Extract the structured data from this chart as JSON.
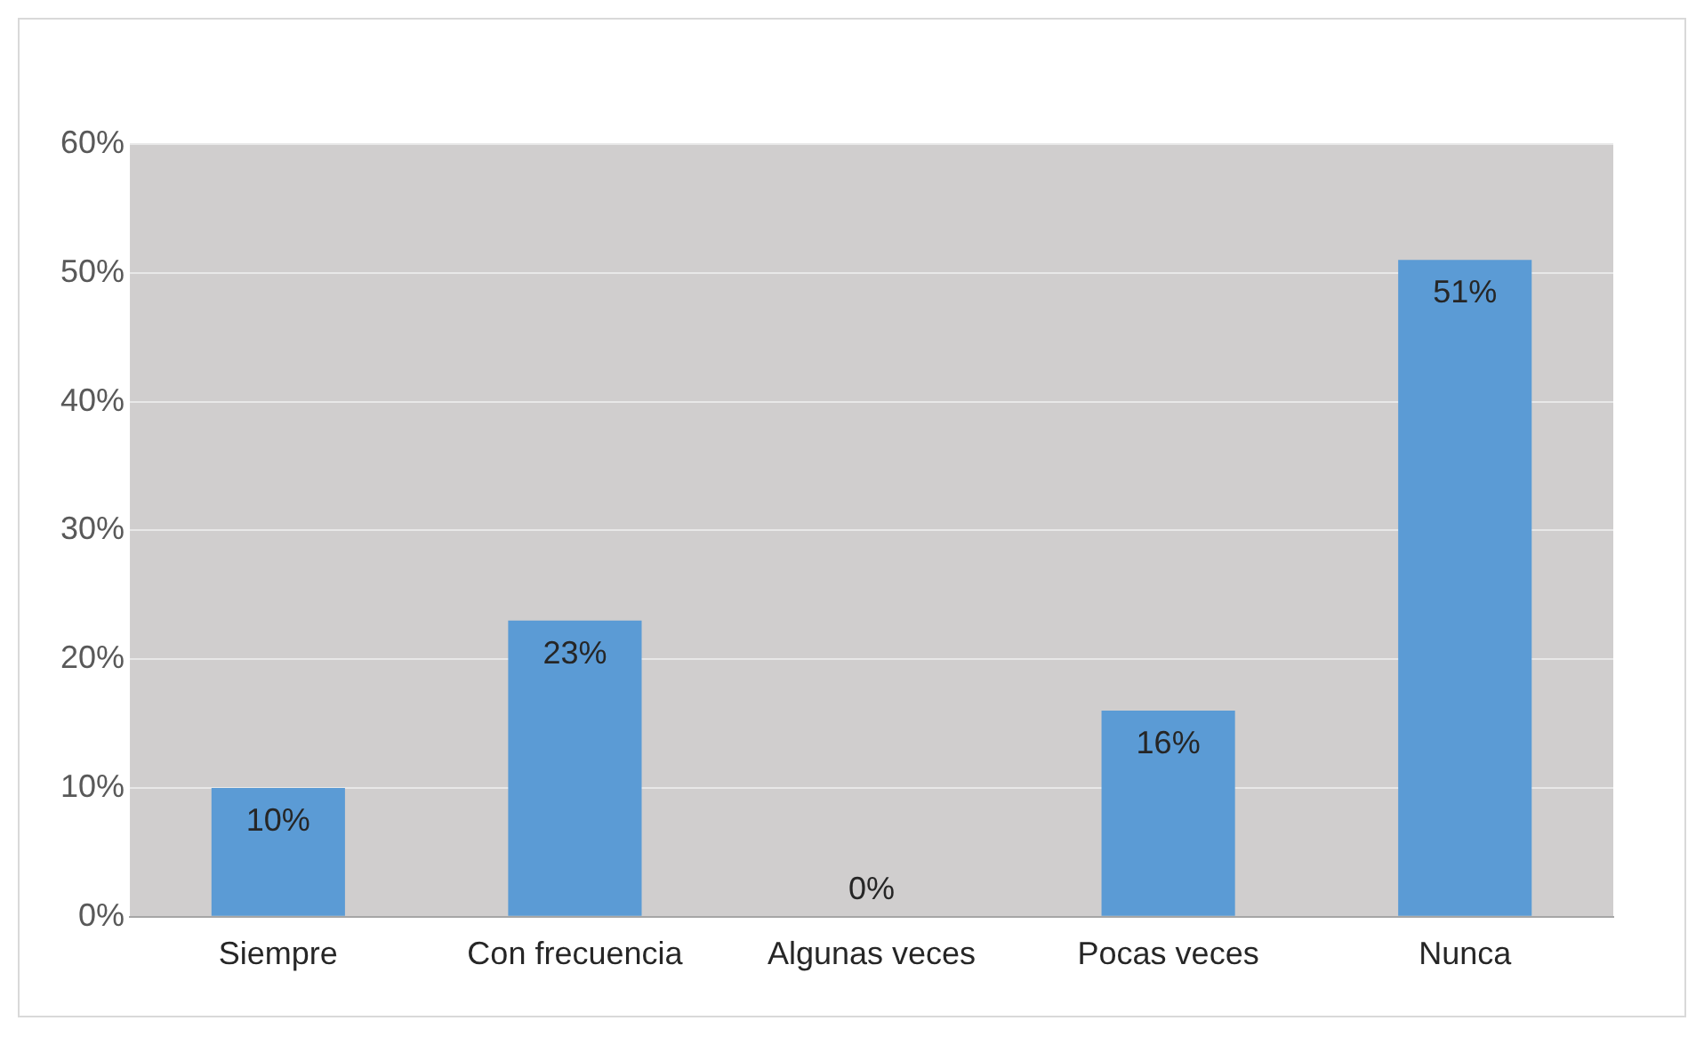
{
  "chart_data": {
    "type": "bar",
    "categories": [
      "Siempre",
      "Con frecuencia",
      "Algunas veces",
      "Pocas veces",
      "Nunca"
    ],
    "values": [
      10,
      23,
      0,
      16,
      51
    ],
    "value_labels": [
      "10%",
      "23%",
      "0%",
      "16%",
      "51%"
    ],
    "color": "#5b9bd5",
    "ylim": [
      0,
      60
    ],
    "yticks": [
      {
        "value": 0,
        "label": "0%"
      },
      {
        "value": 10,
        "label": "10%"
      },
      {
        "value": 20,
        "label": "20%"
      },
      {
        "value": 30,
        "label": "30%"
      },
      {
        "value": 40,
        "label": "40%"
      },
      {
        "value": 50,
        "label": "50%"
      },
      {
        "value": 60,
        "label": "60%"
      }
    ],
    "grid": "y"
  }
}
